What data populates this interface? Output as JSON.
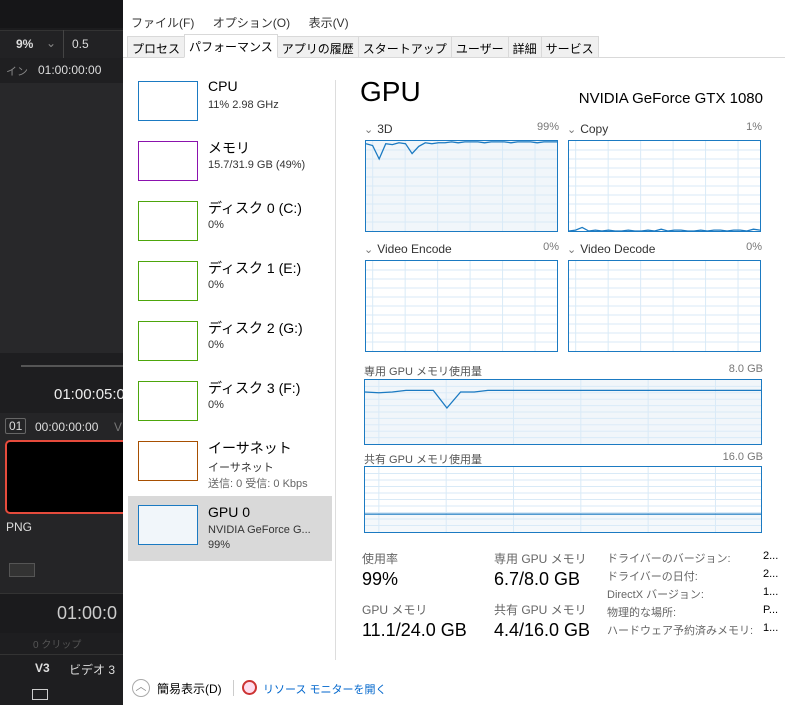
{
  "editor": {
    "zoom": "9%",
    "speed": "0.5",
    "in_label": "イン",
    "in_tc": "01:00:00:00",
    "tc1": "01:00:05:0",
    "clip_no": "01",
    "clip_tc": "00:00:00:00",
    "clip_v": "V",
    "clip_format": "PNG",
    "tc2": "01:00:0",
    "track_hint": "0 クリップ",
    "track_id": "V3",
    "track_name": "ビデオ 3"
  },
  "menu": [
    "ファイル(F)",
    "オプション(O)",
    "表示(V)"
  ],
  "tabs": [
    "プロセス",
    "パフォーマンス",
    "アプリの履歴",
    "スタートアップ",
    "ユーザー",
    "詳細",
    "サービス"
  ],
  "active_tab": 1,
  "sidebar": [
    {
      "name": "CPU",
      "sub": "11%  2.98 GHz",
      "color": "#1b7ac2"
    },
    {
      "name": "メモリ",
      "sub": "15.7/31.9 GB (49%)",
      "color": "#8b12ae"
    },
    {
      "name": "ディスク 0 (C:)",
      "sub": "0%",
      "color": "#4da60c"
    },
    {
      "name": "ディスク 1 (E:)",
      "sub": "0%",
      "color": "#4da60c"
    },
    {
      "name": "ディスク 2 (G:)",
      "sub": "0%",
      "color": "#4da60c"
    },
    {
      "name": "ディスク 3 (F:)",
      "sub": "0%",
      "color": "#4da60c"
    },
    {
      "name": "イーサネット",
      "sub": "イーサネット",
      "sub2": "送信: 0 受信: 0 Kbps",
      "color": "#a74f01"
    },
    {
      "name": "GPU 0",
      "sub": "NVIDIA GeForce G...",
      "sub2": "99%",
      "color": "#1b7ac2",
      "selected": true
    }
  ],
  "gpu": {
    "title": "GPU",
    "model": "NVIDIA GeForce GTX 1080",
    "engines": [
      {
        "label": "3D",
        "value": "99%",
        "series": [
          97,
          95,
          80,
          97,
          96,
          98,
          97,
          86,
          94,
          98,
          97,
          98,
          98,
          99,
          98,
          99,
          99,
          99,
          98,
          99,
          99,
          99,
          98,
          99,
          99,
          99,
          98,
          99,
          99,
          99
        ]
      },
      {
        "label": "Copy",
        "value": "1%",
        "series": [
          0,
          1,
          4,
          0,
          1,
          0,
          1,
          0,
          0,
          1,
          0,
          0,
          1,
          0,
          2,
          0,
          1,
          1,
          0,
          0,
          1,
          0,
          1,
          1,
          0,
          1,
          1,
          0,
          2,
          1
        ]
      },
      {
        "label": "Video Encode",
        "value": "0%"
      },
      {
        "label": "Video Decode",
        "value": "0%"
      }
    ],
    "dedicated": {
      "label": "専用 GPU メモリ使用量",
      "max": "8.0 GB",
      "series": [
        6.5,
        6.4,
        6.5,
        6.7,
        6.7,
        6.7,
        4.5,
        6.5,
        6.5,
        6.7,
        6.7,
        6.7,
        6.7,
        6.7,
        6.7,
        6.7,
        6.7,
        6.7,
        6.7,
        6.7,
        6.7,
        6.7,
        6.7,
        6.7,
        6.7,
        6.7,
        6.7,
        6.7,
        6.7,
        6.7
      ]
    },
    "shared": {
      "label": "共有 GPU メモリ使用量",
      "max": "16.0 GB",
      "series": [
        4.4,
        4.4,
        4.4,
        4.4,
        4.4,
        4.4,
        4.4,
        4.4,
        4.4,
        4.4
      ]
    },
    "stats": [
      {
        "label": "使用率",
        "value": "99%"
      },
      {
        "label": "専用 GPU メモリ",
        "value": "6.7/8.0 GB"
      },
      {
        "label": "GPU メモリ",
        "value": "11.1/24.0 GB"
      },
      {
        "label": "共有 GPU メモリ",
        "value": "4.4/16.0 GB"
      }
    ],
    "props": [
      {
        "k": "ドライバーのバージョン:",
        "v": "2..."
      },
      {
        "k": "ドライバーの日付:",
        "v": "2..."
      },
      {
        "k": "DirectX バージョン:",
        "v": "1..."
      },
      {
        "k": "物理的な場所:",
        "v": "P..."
      },
      {
        "k": "ハードウェア予約済みメモリ:",
        "v": "1..."
      }
    ]
  },
  "footer": {
    "fewer": "簡易表示(D)",
    "monitor": "リソース モニターを開く"
  },
  "colors": {
    "gpu": "#1b7ac2",
    "fill": "#f1f6fa",
    "grid": "#d9eaf7",
    "link": "#0066cc"
  }
}
